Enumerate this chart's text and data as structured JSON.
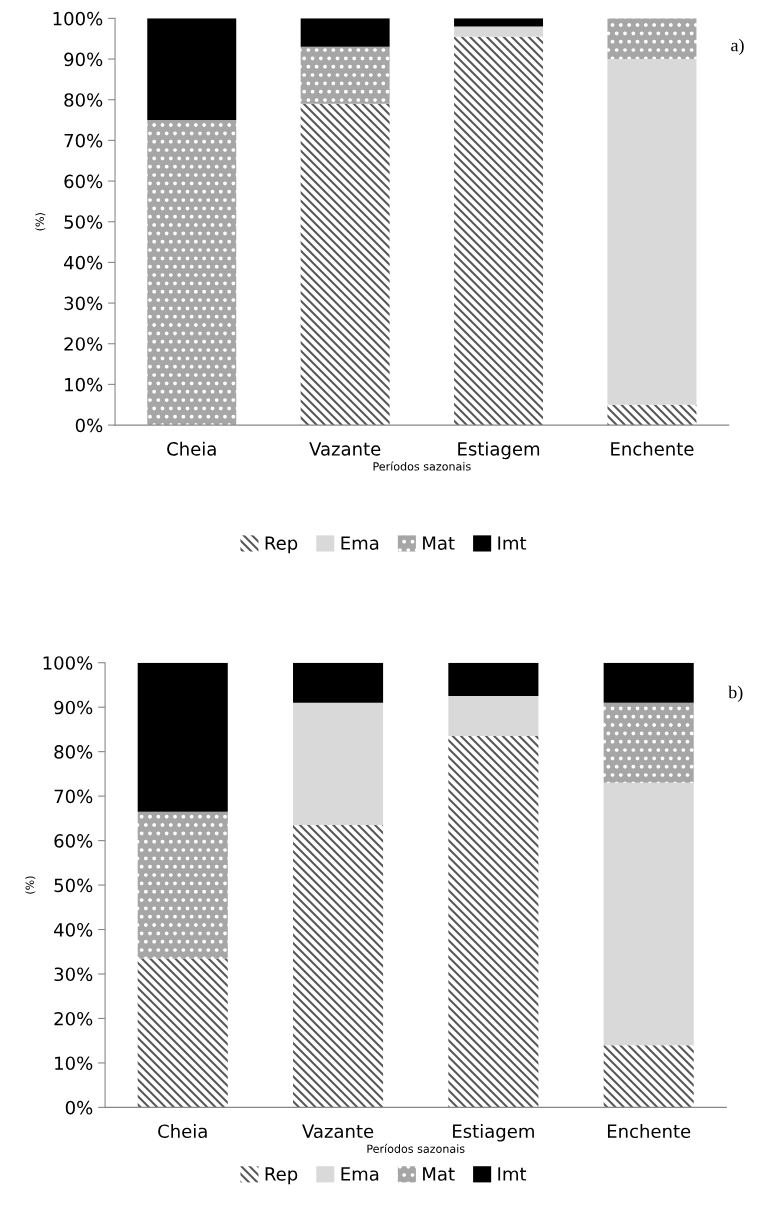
{
  "chart_data": [
    {
      "type": "bar",
      "stacked": true,
      "categories": [
        "Cheia",
        "Vazante",
        "Estiagem",
        "Enchente"
      ],
      "xlabel": "Períodos sazonais",
      "ylabel": "(%)",
      "annotations": [
        "a)"
      ],
      "ylim": [
        0,
        100
      ],
      "yticks": [
        {
          "value": 0,
          "label": "0%"
        },
        {
          "value": 10,
          "label": "10%"
        },
        {
          "value": 20,
          "label": "20%"
        },
        {
          "value": 30,
          "label": "30%"
        },
        {
          "value": 40,
          "label": "40%"
        },
        {
          "value": 50,
          "label": "50%"
        },
        {
          "value": 60,
          "label": "60%"
        },
        {
          "value": 70,
          "label": "70%"
        },
        {
          "value": 80,
          "label": "80%"
        },
        {
          "value": 90,
          "label": "90%"
        },
        {
          "value": 100,
          "label": "100%"
        }
      ],
      "grid": false,
      "legend": "bottom",
      "series": [
        {
          "name": "Rep",
          "color": "#595959",
          "values": [
            0,
            79,
            95.5,
            5
          ]
        },
        {
          "name": "Ema",
          "color": "#d9d9d9",
          "values": [
            0,
            0,
            2.5,
            85
          ]
        },
        {
          "name": "Mat",
          "color": "#a6a6a6",
          "values": [
            75,
            14,
            0,
            10
          ]
        },
        {
          "name": "Imt",
          "color": "#000000",
          "values": [
            25,
            7,
            2,
            0
          ]
        }
      ]
    },
    {
      "type": "bar",
      "stacked": true,
      "categories": [
        "Cheia",
        "Vazante",
        "Estiagem",
        "Enchente"
      ],
      "xlabel": "Períodos sazonais",
      "ylabel": "(%)",
      "annotations": [
        "b)"
      ],
      "ylim": [
        0,
        100
      ],
      "yticks": [
        {
          "value": 0,
          "label": "0%"
        },
        {
          "value": 10,
          "label": "10%"
        },
        {
          "value": 20,
          "label": "20%"
        },
        {
          "value": 30,
          "label": "30%"
        },
        {
          "value": 40,
          "label": "40%"
        },
        {
          "value": 50,
          "label": "50%"
        },
        {
          "value": 60,
          "label": "60%"
        },
        {
          "value": 70,
          "label": "70%"
        },
        {
          "value": 80,
          "label": "80%"
        },
        {
          "value": 90,
          "label": "90%"
        },
        {
          "value": 100,
          "label": "100%"
        }
      ],
      "grid": false,
      "legend": "bottom",
      "series": [
        {
          "name": "Rep",
          "color": "#595959",
          "values": [
            33.5,
            63.5,
            83.5,
            14
          ]
        },
        {
          "name": "Ema",
          "color": "#d9d9d9",
          "values": [
            0,
            27.5,
            9,
            59
          ]
        },
        {
          "name": "Mat",
          "color": "#a6a6a6",
          "values": [
            33,
            0,
            0,
            18
          ]
        },
        {
          "name": "Imt",
          "color": "#000000",
          "values": [
            33.5,
            9,
            7.5,
            9
          ]
        }
      ]
    }
  ]
}
